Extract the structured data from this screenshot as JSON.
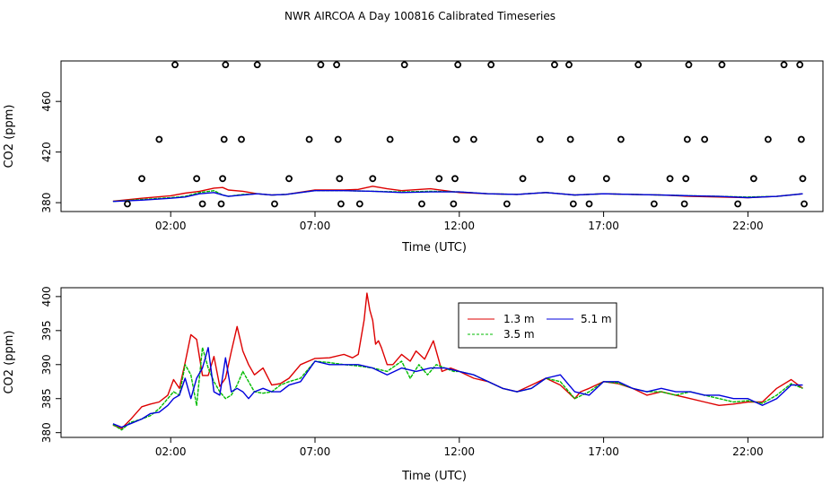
{
  "page": {
    "title": "NWR AIRCOA A  Day 100816  Calibrated Timeseries"
  },
  "colors": {
    "red": "#dd0000",
    "green": "#00bb00",
    "blue": "#0000dd",
    "axis": "#000000"
  },
  "chart_data": [
    {
      "type": "line",
      "xlabel": "Time (UTC)",
      "ylabel": "CO2 (ppm)",
      "xlim": [
        -1.8,
        24.6
      ],
      "ylim": [
        373,
        492
      ],
      "x_ticks": [
        2,
        7,
        12,
        17,
        22
      ],
      "x_tick_labels": [
        "02:00",
        "07:00",
        "12:00",
        "17:00",
        "22:00"
      ],
      "y_ticks": [
        380,
        420,
        460
      ],
      "y_tick_labels": [
        "380",
        "420",
        "460"
      ],
      "calibration_points": [
        {
          "x": 0.5,
          "y": 379
        },
        {
          "x": 1.0,
          "y": 399
        },
        {
          "x": 1.6,
          "y": 430
        },
        {
          "x": 2.15,
          "y": 489
        },
        {
          "x": 2.9,
          "y": 399
        },
        {
          "x": 3.1,
          "y": 379
        },
        {
          "x": 3.75,
          "y": 379
        },
        {
          "x": 3.8,
          "y": 399
        },
        {
          "x": 3.85,
          "y": 430
        },
        {
          "x": 3.9,
          "y": 489
        },
        {
          "x": 4.45,
          "y": 430
        },
        {
          "x": 5.0,
          "y": 489
        },
        {
          "x": 5.6,
          "y": 379
        },
        {
          "x": 6.1,
          "y": 399
        },
        {
          "x": 6.8,
          "y": 430
        },
        {
          "x": 7.2,
          "y": 489
        },
        {
          "x": 7.75,
          "y": 489
        },
        {
          "x": 7.8,
          "y": 430
        },
        {
          "x": 7.85,
          "y": 399
        },
        {
          "x": 7.9,
          "y": 379
        },
        {
          "x": 8.55,
          "y": 379
        },
        {
          "x": 9.0,
          "y": 399
        },
        {
          "x": 9.6,
          "y": 430
        },
        {
          "x": 10.1,
          "y": 489
        },
        {
          "x": 10.7,
          "y": 379
        },
        {
          "x": 11.3,
          "y": 399
        },
        {
          "x": 11.8,
          "y": 379
        },
        {
          "x": 11.85,
          "y": 399
        },
        {
          "x": 11.9,
          "y": 430
        },
        {
          "x": 11.95,
          "y": 489
        },
        {
          "x": 12.5,
          "y": 430
        },
        {
          "x": 13.1,
          "y": 489
        },
        {
          "x": 13.65,
          "y": 379
        },
        {
          "x": 14.2,
          "y": 399
        },
        {
          "x": 14.8,
          "y": 430
        },
        {
          "x": 15.3,
          "y": 489
        },
        {
          "x": 15.8,
          "y": 489
        },
        {
          "x": 15.85,
          "y": 430
        },
        {
          "x": 15.9,
          "y": 399
        },
        {
          "x": 15.95,
          "y": 379
        },
        {
          "x": 16.5,
          "y": 379
        },
        {
          "x": 17.1,
          "y": 399
        },
        {
          "x": 17.6,
          "y": 430
        },
        {
          "x": 18.2,
          "y": 489
        },
        {
          "x": 18.75,
          "y": 379
        },
        {
          "x": 19.3,
          "y": 399
        },
        {
          "x": 19.8,
          "y": 379
        },
        {
          "x": 19.85,
          "y": 399
        },
        {
          "x": 19.9,
          "y": 430
        },
        {
          "x": 19.95,
          "y": 489
        },
        {
          "x": 20.5,
          "y": 430
        },
        {
          "x": 21.1,
          "y": 489
        },
        {
          "x": 21.65,
          "y": 379
        },
        {
          "x": 22.2,
          "y": 399
        },
        {
          "x": 22.7,
          "y": 430
        },
        {
          "x": 23.25,
          "y": 489
        },
        {
          "x": 23.8,
          "y": 489
        },
        {
          "x": 23.85,
          "y": 430
        },
        {
          "x": 23.9,
          "y": 399
        },
        {
          "x": 23.95,
          "y": 379
        }
      ],
      "series": [
        {
          "name": "1.3 m",
          "color": "#dd0000",
          "x": [
            0,
            1,
            2,
            2.5,
            3,
            3.5,
            3.8,
            4,
            4.5,
            5,
            5.5,
            6,
            7,
            8,
            8.5,
            9,
            9.5,
            10,
            11,
            12,
            13,
            14,
            15,
            16,
            17,
            18,
            19,
            20,
            21,
            22,
            23,
            23.9
          ],
          "values": [
            381.2,
            383.5,
            385.5,
            387.5,
            389,
            391.5,
            392,
            390,
            389,
            387,
            386,
            386.5,
            390,
            390,
            390.5,
            393,
            391,
            389.5,
            391,
            388,
            387,
            386.5,
            388,
            386,
            387,
            386.5,
            386,
            385,
            384.5,
            384,
            385,
            387
          ]
        },
        {
          "name": "3.5 m",
          "color": "#00bb00",
          "x": [
            0,
            1,
            2,
            2.5,
            3,
            3.5,
            3.8,
            4,
            4.5,
            5,
            5.5,
            6,
            7,
            8,
            9,
            10,
            11,
            12,
            13,
            14,
            15,
            16,
            17,
            18,
            19,
            20,
            21,
            22,
            23,
            23.9
          ],
          "values": [
            381,
            382.5,
            384,
            385,
            388,
            389.5,
            386,
            385,
            386.5,
            387,
            386,
            386.5,
            389.5,
            389.5,
            389,
            388.5,
            389,
            388.5,
            387,
            386.5,
            388,
            386,
            387,
            386.5,
            386,
            385.5,
            385,
            384.5,
            385,
            387
          ]
        },
        {
          "name": "5.1 m",
          "color": "#0000dd",
          "x": [
            0,
            1,
            2,
            2.5,
            3,
            3.5,
            3.8,
            4,
            4.5,
            5,
            5.5,
            6,
            7,
            8,
            9,
            10,
            11,
            12,
            13,
            14,
            15,
            16,
            17,
            18,
            19,
            20,
            21,
            22,
            23,
            23.9
          ],
          "values": [
            381,
            382,
            383.5,
            384.5,
            387,
            388,
            386,
            385,
            386,
            387,
            386,
            386.5,
            389.5,
            389.5,
            389,
            388,
            388.5,
            388.5,
            387,
            386.5,
            388,
            386,
            387,
            386.5,
            386,
            385.5,
            385,
            384,
            385,
            387
          ]
        }
      ]
    },
    {
      "type": "line",
      "xlabel": "Time (UTC)",
      "ylabel": "CO2 (ppm)",
      "xlim": [
        -1.8,
        24.6
      ],
      "ylim": [
        379.3,
        401.3
      ],
      "x_ticks": [
        2,
        7,
        12,
        17,
        22
      ],
      "x_tick_labels": [
        "02:00",
        "07:00",
        "12:00",
        "17:00",
        "22:00"
      ],
      "y_ticks": [
        380,
        385,
        390,
        395,
        400
      ],
      "y_tick_labels": [
        "380",
        "385",
        "390",
        "395",
        "400"
      ],
      "legend": {
        "position": "top-center",
        "columns": 2
      },
      "series": [
        {
          "name": "1.3 m",
          "color": "#dd0000",
          "x": [
            0,
            0.3,
            0.6,
            1,
            1.3,
            1.6,
            1.9,
            2.1,
            2.3,
            2.5,
            2.7,
            2.9,
            3.1,
            3.3,
            3.5,
            3.7,
            3.9,
            4.1,
            4.3,
            4.5,
            4.7,
            4.9,
            5.2,
            5.5,
            5.8,
            6.1,
            6.5,
            7,
            7.5,
            8,
            8.3,
            8.5,
            8.7,
            8.8,
            8.9,
            9.0,
            9.1,
            9.2,
            9.3,
            9.5,
            9.7,
            10,
            10.3,
            10.5,
            10.8,
            11.1,
            11.4,
            11.7,
            12,
            12.5,
            13,
            13.5,
            14,
            14.5,
            15,
            15.5,
            16,
            16.2,
            16.5,
            17,
            17.5,
            18,
            18.5,
            19,
            19.5,
            20,
            20.5,
            21,
            21.5,
            22,
            22.5,
            23,
            23.5,
            23.9
          ],
          "values": [
            381.1,
            380.6,
            381.9,
            383.8,
            384.2,
            384.5,
            385.5,
            387.8,
            386.5,
            390.3,
            394.4,
            393.7,
            388.4,
            388.4,
            391.2,
            386.8,
            388.0,
            391.9,
            395.6,
            392.0,
            390.0,
            388.5,
            389.5,
            387.0,
            387.2,
            388.0,
            390.0,
            390.9,
            391.0,
            391.5,
            391.0,
            391.5,
            396.5,
            400.5,
            398.0,
            396.5,
            393.0,
            393.5,
            392.5,
            390.0,
            390.0,
            391.5,
            390.5,
            392.0,
            390.8,
            393.5,
            389.0,
            389.5,
            389.0,
            388.0,
            387.5,
            386.5,
            386.0,
            387.0,
            388.0,
            387.0,
            385.0,
            386.0,
            386.5,
            387.5,
            387.2,
            386.5,
            385.5,
            386.0,
            385.5,
            385.0,
            384.5,
            384.0,
            384.2,
            384.5,
            384.5,
            386.5,
            387.8,
            386.5
          ]
        },
        {
          "name": "3.5 m",
          "color": "#00bb00",
          "x": [
            0,
            0.3,
            0.6,
            1,
            1.3,
            1.6,
            1.9,
            2.1,
            2.3,
            2.5,
            2.7,
            2.9,
            3.1,
            3.3,
            3.5,
            3.7,
            3.9,
            4.1,
            4.3,
            4.5,
            4.7,
            4.9,
            5.2,
            5.5,
            5.8,
            6.1,
            6.5,
            7,
            7.5,
            8,
            8.5,
            9,
            9.5,
            10,
            10.3,
            10.6,
            10.9,
            11.2,
            11.5,
            11.8,
            12,
            12.5,
            13,
            13.5,
            14,
            14.5,
            15,
            15.5,
            16,
            16.5,
            17,
            17.5,
            18,
            18.5,
            19,
            19.5,
            20,
            20.5,
            21,
            21.5,
            22,
            22.5,
            23,
            23.5,
            23.9
          ],
          "values": [
            381.2,
            380.4,
            381.5,
            382.0,
            382.5,
            383.5,
            385.0,
            386.0,
            385.5,
            390.0,
            388.5,
            384.0,
            392.5,
            389.5,
            387.5,
            386.0,
            385.0,
            385.5,
            387.0,
            389.0,
            387.5,
            386.0,
            385.8,
            386.0,
            387.0,
            387.5,
            388.0,
            390.5,
            390.3,
            390.0,
            389.8,
            389.5,
            389.0,
            390.5,
            388.0,
            390.0,
            388.5,
            390.0,
            389.5,
            389.0,
            389.0,
            388.5,
            387.5,
            386.5,
            386.0,
            386.5,
            388.0,
            387.5,
            385.0,
            386.0,
            387.5,
            387.3,
            386.5,
            386.0,
            386.0,
            385.5,
            386.0,
            385.5,
            385.0,
            384.5,
            384.7,
            384.3,
            385.5,
            387.2,
            386.5
          ]
        },
        {
          "name": "5.1 m",
          "color": "#0000dd",
          "x": [
            0,
            0.3,
            0.6,
            1,
            1.3,
            1.6,
            1.9,
            2.1,
            2.3,
            2.5,
            2.7,
            2.9,
            3.1,
            3.3,
            3.5,
            3.7,
            3.9,
            4.1,
            4.3,
            4.5,
            4.7,
            4.9,
            5.2,
            5.5,
            5.8,
            6.1,
            6.5,
            7,
            7.5,
            8,
            8.5,
            9,
            9.5,
            10,
            10.5,
            11,
            11.5,
            12,
            12.5,
            13,
            13.5,
            14,
            14.5,
            15,
            15.5,
            16,
            16.5,
            17,
            17.5,
            18,
            18.5,
            19,
            19.5,
            20,
            20.5,
            21,
            21.5,
            22,
            22.5,
            23,
            23.5,
            23.9
          ],
          "values": [
            381.3,
            380.8,
            381.3,
            382.0,
            382.8,
            383.0,
            384.0,
            385.0,
            385.5,
            388.0,
            385.0,
            388.0,
            389.5,
            392.5,
            386.0,
            385.5,
            391.0,
            386.0,
            386.5,
            386.0,
            385.0,
            386.0,
            386.5,
            386.0,
            386.0,
            387.0,
            387.5,
            390.5,
            390.0,
            390.0,
            390.0,
            389.5,
            388.5,
            389.5,
            389.0,
            389.5,
            389.5,
            389.0,
            388.5,
            387.5,
            386.5,
            386.0,
            386.5,
            388.0,
            388.5,
            386.0,
            385.5,
            387.5,
            387.5,
            386.5,
            386.0,
            386.5,
            386.0,
            386.0,
            385.5,
            385.5,
            385.0,
            385.0,
            384.0,
            385.0,
            387.0,
            387.0
          ]
        }
      ]
    }
  ]
}
